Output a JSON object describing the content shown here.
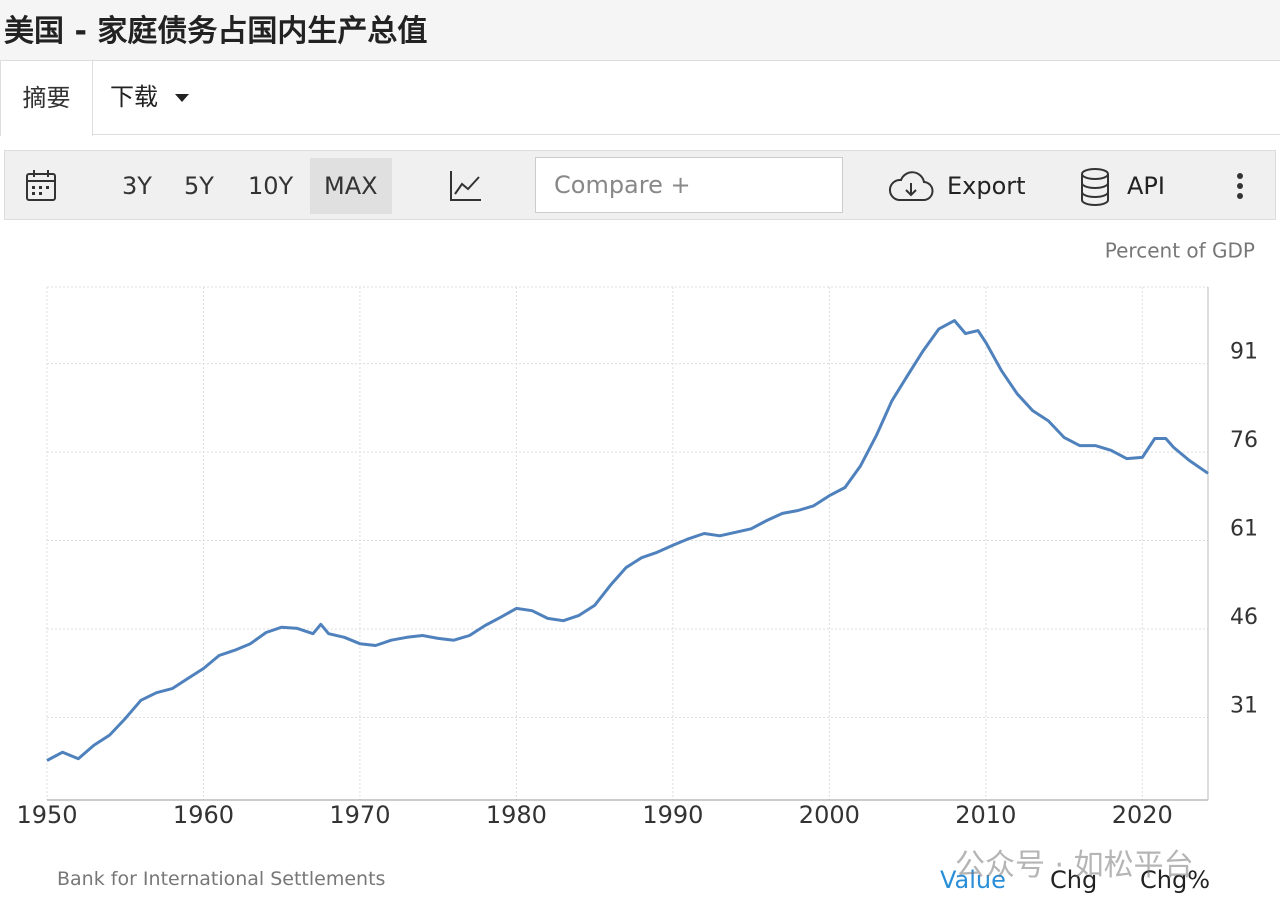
{
  "header": {
    "title": "美国 - 家庭债务占国内生产总值"
  },
  "tabs": [
    "摘要",
    "下载"
  ],
  "toolbar": {
    "ranges": [
      "3Y",
      "5Y",
      "10Y",
      "MAX"
    ],
    "active": 3,
    "compare_placeholder": "Compare +",
    "export": "Export",
    "api": "API"
  },
  "chart_data": {
    "type": "line",
    "y_label": "Percent of GDP",
    "color": "#4f81bd",
    "x": [
      1950,
      1951,
      1952,
      1953,
      1954,
      1955,
      1956,
      1957,
      1958,
      1959,
      1960,
      1961,
      1962,
      1963,
      1964,
      1965,
      1966,
      1967,
      1967.5,
      1968,
      1969,
      1970,
      1971,
      1972,
      1973,
      1974,
      1975,
      1976,
      1977,
      1978,
      1979,
      1980,
      1981,
      1982,
      1983,
      1984,
      1985,
      1986,
      1987,
      1988,
      1989,
      1990,
      1991,
      1992,
      1993,
      1994,
      1995,
      1996,
      1997,
      1998,
      1999,
      2000,
      2001,
      2002,
      2003,
      2004,
      2005,
      2006,
      2007,
      2008,
      2008.7,
      2009.5,
      2010,
      2011,
      2012,
      2013,
      2014,
      2015,
      2016,
      2017,
      2018,
      2019,
      2020,
      2020.8,
      2021.5,
      2022,
      2023,
      2024.2
    ],
    "values": [
      23.7,
      25.1,
      24.0,
      26.3,
      28.0,
      30.8,
      33.9,
      35.2,
      35.9,
      37.6,
      39.3,
      41.5,
      42.4,
      43.5,
      45.4,
      46.3,
      46.1,
      45.2,
      46.8,
      45.2,
      44.6,
      43.5,
      43.2,
      44.1,
      44.6,
      44.9,
      44.4,
      44.1,
      44.9,
      46.6,
      48.0,
      49.5,
      49.1,
      47.8,
      47.4,
      48.3,
      50.0,
      53.4,
      56.4,
      58.1,
      59.0,
      60.2,
      61.3,
      62.2,
      61.8,
      62.4,
      63.0,
      64.4,
      65.6,
      66.1,
      66.9,
      68.6,
      70.0,
      73.7,
      78.8,
      84.7,
      89.0,
      93.2,
      96.9,
      98.3,
      96.1,
      96.6,
      94.6,
      89.8,
      85.9,
      83.0,
      81.3,
      78.5,
      77.1,
      77.1,
      76.3,
      74.9,
      75.1,
      78.3,
      78.3,
      76.8,
      74.6,
      72.4
    ],
    "xlim": [
      1950,
      2024.2
    ],
    "xticks": [
      1950,
      1960,
      1970,
      1980,
      1990,
      2000,
      2010,
      2020
    ],
    "ylim": [
      17,
      104
    ],
    "yticks": [
      31,
      46,
      61,
      76,
      91
    ],
    "y_axis": "right",
    "grid": true,
    "source": "Bank for International Settlements"
  },
  "footer": {
    "tabs": [
      "Value",
      "Chg",
      "Chg%"
    ],
    "active": 0
  },
  "watermark": "公众号 · 如松平台"
}
